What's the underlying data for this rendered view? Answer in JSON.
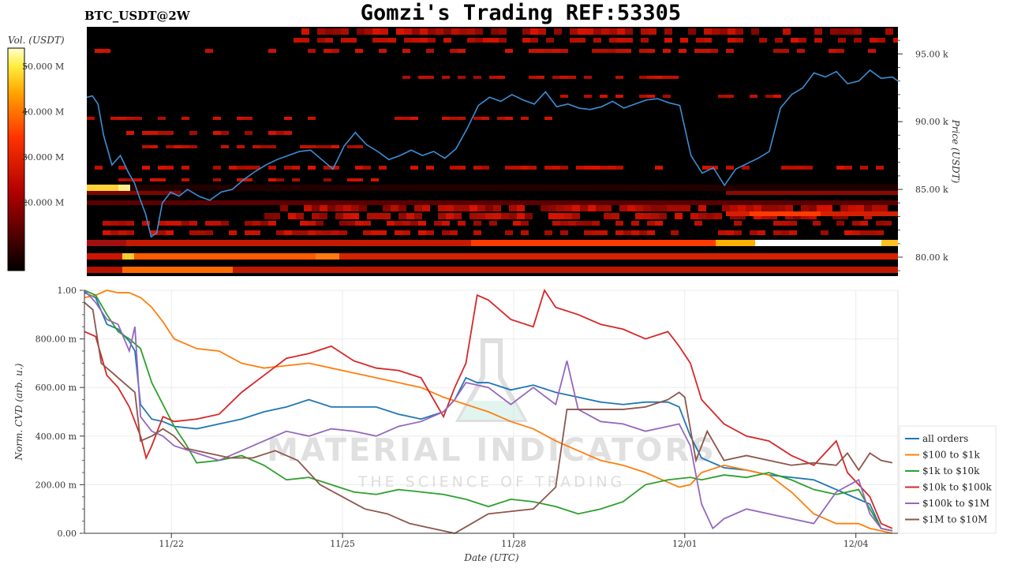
{
  "header": {
    "pair_label": "BTC_USDT@2W",
    "title": "Gomzi's Trading REF:53305"
  },
  "watermark": {
    "line1": "MATERIAL INDICATORS",
    "line2": "THE SCIENCE OF TRADING"
  },
  "chart_data": [
    {
      "type": "heatmap",
      "colorbar": {
        "label": "Vol. (USDT)",
        "ticks": [
          "50.000 M",
          "40.000 M",
          "30.000 M",
          "20.000 M"
        ],
        "tick_values": [
          50,
          40,
          30,
          20
        ],
        "range": [
          5,
          54
        ]
      },
      "y_axis": {
        "label": "Price (USDT)",
        "ticks": [
          "95.00 k",
          "90.00 k",
          "85.00 k",
          "80.00 k"
        ],
        "tick_values": [
          95,
          90,
          85,
          80
        ],
        "range": [
          78.6,
          97
        ]
      },
      "x_range": [
        0,
        14.5
      ],
      "price_color": "#3b8fd6",
      "price_series": {
        "x": [
          0,
          0.1,
          0.2,
          0.3,
          0.45,
          0.6,
          0.75,
          0.85,
          0.95,
          1.05,
          1.15,
          1.25,
          1.35,
          1.5,
          1.65,
          1.8,
          2,
          2.2,
          2.4,
          2.6,
          2.8,
          3,
          3.2,
          3.4,
          3.6,
          3.8,
          4,
          4.2,
          4.4,
          4.6,
          4.8,
          5,
          5.2,
          5.4,
          5.6,
          5.8,
          6,
          6.2,
          6.4,
          6.6,
          6.8,
          7,
          7.2,
          7.4,
          7.6,
          7.8,
          8,
          8.2,
          8.4,
          8.6,
          8.8,
          9,
          9.2,
          9.4,
          9.6,
          9.8,
          10,
          10.2,
          10.4,
          10.6,
          10.8,
          11,
          11.2,
          11.4,
          11.6,
          11.8,
          12,
          12.2,
          12.4,
          12.6,
          12.8,
          13,
          13.2,
          13.4,
          13.6,
          13.8,
          14,
          14.2,
          14.4,
          14.5
        ],
        "y": [
          91.8,
          91.9,
          91.3,
          89.0,
          86.8,
          87.5,
          86.2,
          85.5,
          84.3,
          83.2,
          81.5,
          81.8,
          84.0,
          84.8,
          84.5,
          85.0,
          84.5,
          84.2,
          84.8,
          85.0,
          85.7,
          86.3,
          86.8,
          87.2,
          87.5,
          87.8,
          87.9,
          87.2,
          86.5,
          88.2,
          89.2,
          88.3,
          87.8,
          87.2,
          87.5,
          87.9,
          87.5,
          87.8,
          87.3,
          88.0,
          89.5,
          91.2,
          91.8,
          91.5,
          92.0,
          91.6,
          91.3,
          92.2,
          91.1,
          91.3,
          91.0,
          90.9,
          91.1,
          91.5,
          91.0,
          91.3,
          91.6,
          91.7,
          91.4,
          91.2,
          87.5,
          86.2,
          86.6,
          85.3,
          86.5,
          86.9,
          87.3,
          87.8,
          91.0,
          92.0,
          92.5,
          93.6,
          93.3,
          93.7,
          92.8,
          93.0,
          93.8,
          93.2,
          93.3,
          93.0
        ]
      }
    },
    {
      "type": "line",
      "x_axis": {
        "label": "Date (UTC)",
        "ticks": [
          "11/22",
          "11/25",
          "11/28",
          "12/01",
          "12/04"
        ],
        "tick_positions": [
          1.55,
          4.6,
          7.65,
          10.7,
          13.75
        ],
        "range": [
          0,
          14.5
        ]
      },
      "y_axis": {
        "label": "Norm. CVD (arb. u.)",
        "ticks": [
          "1.00",
          "800.00 m",
          "600.00 m",
          "400.00 m",
          "200.00 m",
          "0.00"
        ],
        "tick_values": [
          1.0,
          0.8,
          0.6,
          0.4,
          0.2,
          0.0
        ],
        "range": [
          0,
          1
        ]
      },
      "series": [
        {
          "name": "all orders",
          "color": "#1f77b4",
          "x": [
            0,
            0.2,
            0.4,
            0.6,
            0.8,
            0.9,
            1.0,
            1.2,
            1.4,
            1.6,
            2.0,
            2.4,
            2.8,
            3.2,
            3.6,
            4.0,
            4.4,
            4.8,
            5.2,
            5.6,
            6.0,
            6.4,
            6.6,
            6.8,
            7.0,
            7.2,
            7.6,
            8.0,
            8.4,
            8.8,
            9.2,
            9.6,
            10.0,
            10.4,
            10.6,
            10.8,
            11.0,
            11.4,
            11.8,
            12.2,
            12.6,
            13.0,
            13.4,
            13.8,
            14.0,
            14.2,
            14.4
          ],
          "y": [
            0.99,
            0.97,
            0.86,
            0.84,
            0.79,
            0.75,
            0.53,
            0.47,
            0.46,
            0.44,
            0.43,
            0.45,
            0.47,
            0.5,
            0.52,
            0.55,
            0.52,
            0.52,
            0.52,
            0.49,
            0.47,
            0.5,
            0.55,
            0.64,
            0.62,
            0.62,
            0.59,
            0.61,
            0.58,
            0.56,
            0.54,
            0.53,
            0.54,
            0.54,
            0.52,
            0.4,
            0.31,
            0.27,
            0.26,
            0.24,
            0.23,
            0.22,
            0.18,
            0.14,
            0.12,
            0.02,
            0.01
          ]
        },
        {
          "name": "$100 to $1k",
          "color": "#ff7f0e",
          "x": [
            0,
            0.2,
            0.4,
            0.6,
            0.8,
            1.0,
            1.2,
            1.4,
            1.6,
            2.0,
            2.4,
            2.8,
            3.2,
            3.6,
            4.0,
            4.4,
            4.8,
            5.2,
            5.6,
            6.0,
            6.4,
            6.8,
            7.2,
            7.6,
            8.0,
            8.4,
            8.8,
            9.2,
            9.6,
            10.0,
            10.4,
            10.6,
            10.8,
            11.0,
            11.4,
            11.8,
            12.2,
            12.6,
            13.0,
            13.4,
            13.8,
            14.0,
            14.2,
            14.4
          ],
          "y": [
            0.97,
            0.98,
            1.0,
            0.99,
            0.99,
            0.97,
            0.93,
            0.87,
            0.8,
            0.76,
            0.75,
            0.7,
            0.68,
            0.69,
            0.7,
            0.68,
            0.66,
            0.64,
            0.62,
            0.6,
            0.56,
            0.53,
            0.5,
            0.46,
            0.43,
            0.38,
            0.34,
            0.3,
            0.28,
            0.25,
            0.21,
            0.19,
            0.2,
            0.25,
            0.28,
            0.26,
            0.24,
            0.17,
            0.08,
            0.04,
            0.04,
            0.02,
            0.01,
            0.0
          ]
        },
        {
          "name": "$1k to $10k",
          "color": "#2ca02c",
          "x": [
            0,
            0.2,
            0.4,
            0.6,
            0.8,
            1.0,
            1.2,
            1.4,
            1.6,
            1.8,
            2.0,
            2.4,
            2.8,
            3.2,
            3.6,
            4.0,
            4.4,
            4.8,
            5.2,
            5.6,
            6.0,
            6.4,
            6.8,
            7.2,
            7.6,
            8.0,
            8.4,
            8.8,
            9.2,
            9.6,
            10.0,
            10.4,
            10.8,
            11.0,
            11.4,
            11.8,
            12.2,
            12.6,
            13.0,
            13.4,
            13.8,
            14.0,
            14.2,
            14.4
          ],
          "y": [
            1.0,
            0.98,
            0.9,
            0.83,
            0.8,
            0.76,
            0.62,
            0.53,
            0.44,
            0.37,
            0.29,
            0.3,
            0.32,
            0.28,
            0.22,
            0.23,
            0.2,
            0.17,
            0.16,
            0.18,
            0.17,
            0.16,
            0.14,
            0.11,
            0.14,
            0.13,
            0.11,
            0.08,
            0.1,
            0.13,
            0.2,
            0.22,
            0.23,
            0.22,
            0.24,
            0.23,
            0.25,
            0.22,
            0.18,
            0.16,
            0.18,
            0.1,
            0.02,
            0.01
          ]
        },
        {
          "name": "$10k to $100k",
          "color": "#d62728",
          "x": [
            0,
            0.2,
            0.4,
            0.6,
            0.8,
            1.0,
            1.1,
            1.2,
            1.4,
            1.6,
            2.0,
            2.4,
            2.8,
            3.2,
            3.6,
            4.0,
            4.4,
            4.8,
            5.2,
            5.6,
            6.0,
            6.4,
            6.6,
            6.8,
            7.0,
            7.2,
            7.6,
            8.0,
            8.2,
            8.4,
            8.8,
            9.2,
            9.6,
            10.0,
            10.4,
            10.6,
            10.8,
            11.0,
            11.4,
            11.8,
            12.2,
            12.6,
            13.0,
            13.4,
            13.6,
            13.8,
            14.0,
            14.2,
            14.4
          ],
          "y": [
            0.83,
            0.81,
            0.65,
            0.6,
            0.52,
            0.4,
            0.31,
            0.36,
            0.48,
            0.46,
            0.47,
            0.49,
            0.58,
            0.65,
            0.72,
            0.74,
            0.77,
            0.71,
            0.68,
            0.67,
            0.64,
            0.48,
            0.6,
            0.7,
            0.98,
            0.96,
            0.88,
            0.85,
            1.0,
            0.93,
            0.9,
            0.86,
            0.84,
            0.8,
            0.83,
            0.77,
            0.7,
            0.55,
            0.45,
            0.4,
            0.38,
            0.32,
            0.28,
            0.38,
            0.25,
            0.2,
            0.15,
            0.04,
            0.02
          ]
        },
        {
          "name": "$100k to $1M",
          "color": "#9467bd",
          "x": [
            0,
            0.2,
            0.4,
            0.6,
            0.8,
            0.9,
            1.0,
            1.2,
            1.4,
            1.6,
            2.0,
            2.4,
            2.8,
            3.2,
            3.6,
            4.0,
            4.4,
            4.8,
            5.2,
            5.6,
            6.0,
            6.4,
            6.6,
            6.8,
            7.2,
            7.6,
            8.0,
            8.4,
            8.6,
            8.8,
            9.2,
            9.6,
            10.0,
            10.4,
            10.6,
            10.8,
            11.0,
            11.2,
            11.4,
            11.8,
            12.2,
            12.6,
            13.0,
            13.4,
            13.8,
            14.0,
            14.2,
            14.4
          ],
          "y": [
            1.0,
            0.95,
            0.88,
            0.86,
            0.75,
            0.85,
            0.48,
            0.42,
            0.4,
            0.36,
            0.33,
            0.3,
            0.34,
            0.38,
            0.42,
            0.4,
            0.43,
            0.42,
            0.4,
            0.44,
            0.46,
            0.5,
            0.55,
            0.62,
            0.6,
            0.53,
            0.6,
            0.53,
            0.71,
            0.51,
            0.46,
            0.45,
            0.42,
            0.44,
            0.45,
            0.36,
            0.12,
            0.02,
            0.06,
            0.1,
            0.08,
            0.06,
            0.04,
            0.17,
            0.22,
            0.08,
            0.02,
            0.01
          ]
        },
        {
          "name": "$1M to $10M",
          "color": "#8c564b",
          "x": [
            0,
            0.15,
            0.3,
            0.5,
            0.7,
            0.9,
            1.0,
            1.2,
            1.4,
            1.6,
            1.8,
            2.2,
            2.6,
            3.0,
            3.4,
            3.8,
            4.2,
            4.6,
            5.0,
            5.4,
            5.8,
            6.2,
            6.6,
            6.9,
            7.2,
            7.6,
            8.0,
            8.4,
            8.6,
            8.9,
            9.2,
            9.6,
            10.0,
            10.4,
            10.6,
            10.7,
            10.9,
            11.1,
            11.4,
            11.8,
            12.2,
            12.6,
            13.0,
            13.4,
            13.6,
            13.8,
            14.0,
            14.2,
            14.4
          ],
          "y": [
            0.95,
            0.92,
            0.7,
            0.66,
            0.62,
            0.58,
            0.38,
            0.4,
            0.43,
            0.4,
            0.35,
            0.33,
            0.31,
            0.31,
            0.34,
            0.3,
            0.2,
            0.15,
            0.1,
            0.08,
            0.04,
            0.02,
            0.0,
            0.04,
            0.08,
            0.09,
            0.1,
            0.19,
            0.51,
            0.51,
            0.51,
            0.51,
            0.52,
            0.55,
            0.58,
            0.56,
            0.3,
            0.42,
            0.3,
            0.32,
            0.3,
            0.28,
            0.29,
            0.28,
            0.33,
            0.26,
            0.33,
            0.3,
            0.29
          ]
        }
      ]
    }
  ]
}
